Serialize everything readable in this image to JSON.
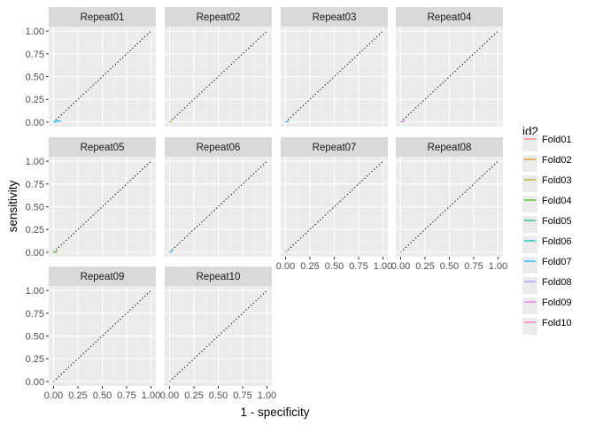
{
  "chart_data": {
    "type": "line",
    "xlabel": "1 - specificity",
    "ylabel": "sensitivity",
    "xlim": [
      -0.05,
      1.05
    ],
    "ylim": [
      -0.05,
      1.05
    ],
    "x_ticks": [
      "0.00",
      "0.25",
      "0.50",
      "0.75",
      "1.00"
    ],
    "y_ticks": [
      "0.00",
      "0.25",
      "0.50",
      "0.75",
      "1.00"
    ],
    "tick_values": [
      0,
      0.25,
      0.5,
      0.75,
      1
    ],
    "grid": true,
    "reference_line": {
      "style": "dotted",
      "color": "#000000",
      "from": [
        0,
        0
      ],
      "to": [
        1,
        1
      ]
    },
    "legend": {
      "title": "id2",
      "placement": "right",
      "entries": [
        {
          "name": "Fold01",
          "color": "#F8766D"
        },
        {
          "name": "Fold02",
          "color": "#D89000"
        },
        {
          "name": "Fold03",
          "color": "#A3A500"
        },
        {
          "name": "Fold04",
          "color": "#39B600"
        },
        {
          "name": "Fold05",
          "color": "#00BF7D"
        },
        {
          "name": "Fold06",
          "color": "#00BFC4"
        },
        {
          "name": "Fold07",
          "color": "#00B0F6"
        },
        {
          "name": "Fold08",
          "color": "#9590FF"
        },
        {
          "name": "Fold09",
          "color": "#E76BF3"
        },
        {
          "name": "Fold10",
          "color": "#FF62BC"
        }
      ]
    },
    "facets": [
      {
        "label": "Repeat01",
        "series": [
          {
            "color": "#00B0F6",
            "x": [
              0,
              0.02,
              0.05,
              0.08
            ],
            "y": [
              0,
              0.01,
              0.01,
              0.01
            ]
          },
          {
            "color": "#00BFC4",
            "x": [
              0,
              0.03
            ],
            "y": [
              0,
              0.005
            ]
          }
        ]
      },
      {
        "label": "Repeat02",
        "series": [
          {
            "color": "#A3A500",
            "x": [
              0,
              0.02
            ],
            "y": [
              0,
              0.005
            ]
          }
        ]
      },
      {
        "label": "Repeat03",
        "series": [
          {
            "color": "#00B0F6",
            "x": [
              0,
              0.03
            ],
            "y": [
              0,
              0.01
            ]
          }
        ]
      },
      {
        "label": "Repeat04",
        "series": [
          {
            "color": "#E76BF3",
            "x": [
              0,
              0.04
            ],
            "y": [
              0,
              0.01
            ]
          },
          {
            "color": "#9590FF",
            "x": [
              0,
              0.02
            ],
            "y": [
              0,
              0.005
            ]
          }
        ]
      },
      {
        "label": "Repeat05",
        "series": [
          {
            "color": "#39B600",
            "x": [
              0,
              0.04
            ],
            "y": [
              0,
              0.005
            ]
          }
        ]
      },
      {
        "label": "Repeat06",
        "series": [
          {
            "color": "#00B0F6",
            "x": [
              0,
              0.03
            ],
            "y": [
              0,
              0.01
            ]
          }
        ]
      },
      {
        "label": "Repeat07",
        "series": [
          {
            "color": "#F8766D",
            "x": [
              0,
              0.01
            ],
            "y": [
              0,
              0.005
            ]
          }
        ]
      },
      {
        "label": "Repeat08",
        "series": [
          {
            "color": "#FF62BC",
            "x": [
              0,
              0.01
            ],
            "y": [
              0,
              0.005
            ]
          }
        ]
      },
      {
        "label": "Repeat09",
        "series": [
          {
            "color": "#9590FF",
            "x": [
              0,
              0.01
            ],
            "y": [
              0,
              0.005
            ]
          }
        ]
      },
      {
        "label": "Repeat10",
        "series": [
          {
            "color": "#FF62BC",
            "x": [
              0,
              0.01
            ],
            "y": [
              0,
              0.005
            ]
          }
        ]
      }
    ]
  }
}
